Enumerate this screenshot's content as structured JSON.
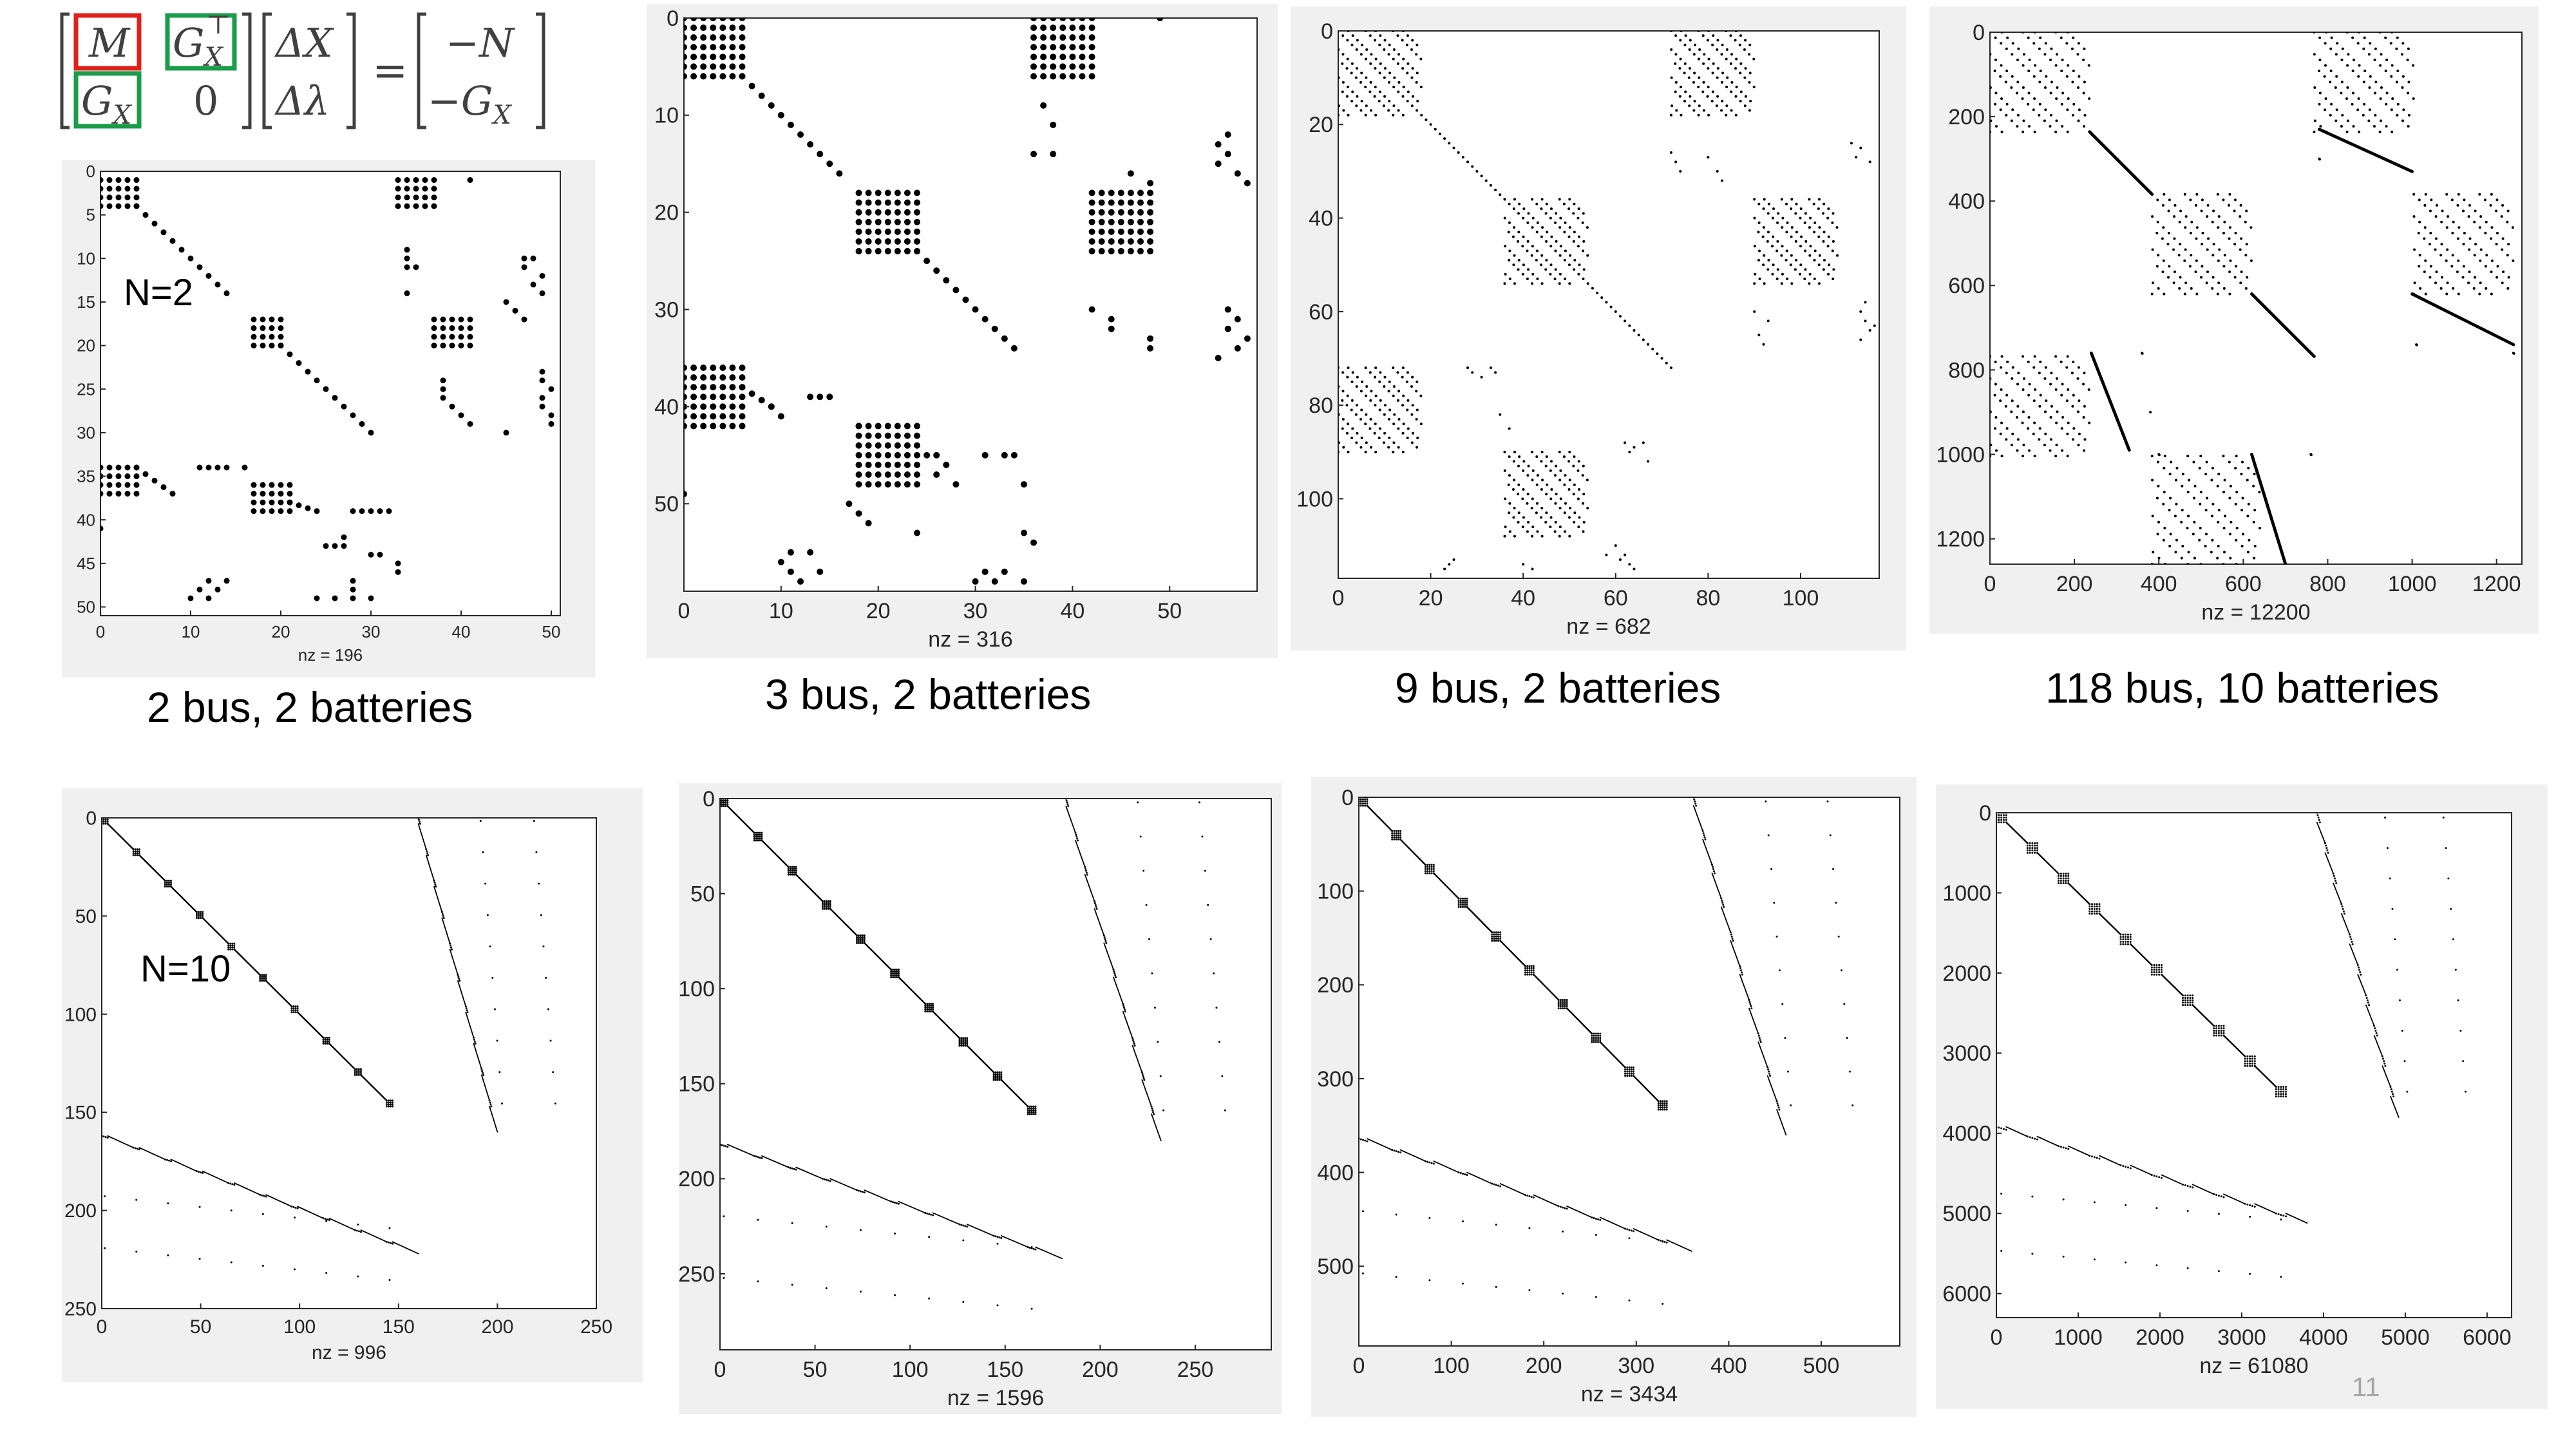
{
  "equation": {
    "m11": "M",
    "m12_base": "G",
    "m12_sub": "X",
    "m12_sup": "⊤",
    "m21_base": "G",
    "m21_sub": "X",
    "m22": "0",
    "x1": "ΔX",
    "x2": "Δλ",
    "eq": "=",
    "r1": "−N",
    "r2_base": "−G",
    "r2_sub": "X",
    "m_box_color": "#e0201b",
    "g_box_color": "#1a9c4a"
  },
  "page_number": "11",
  "chart_data": [
    {
      "type": "heatmap",
      "title": "",
      "xlabel": "nz = 196",
      "ylabel": "",
      "caption": "2 bus, 2 batteries",
      "annotation": "N=2",
      "xlim": [
        0,
        51
      ],
      "ylim": [
        0,
        51
      ],
      "xticks": [
        "0",
        "10",
        "20",
        "30",
        "40",
        "50"
      ],
      "yticks": [
        "0",
        "5",
        "10",
        "15",
        "20",
        "25",
        "30",
        "35",
        "40",
        "45",
        "50"
      ],
      "xtick_values": [
        0,
        10,
        20,
        30,
        40,
        50
      ],
      "ytick_values": [
        0,
        5,
        10,
        15,
        20,
        25,
        30,
        35,
        40,
        45,
        50
      ],
      "nz": 196,
      "blocks": [
        {
          "r0": 1,
          "r1": 4,
          "c0": 0,
          "c1": 4
        },
        {
          "r0": 1,
          "r1": 4,
          "c0": 33,
          "c1": 37
        },
        {
          "r0": 17,
          "r1": 20,
          "c0": 17,
          "c1": 20
        },
        {
          "r0": 17,
          "r1": 20,
          "c0": 37,
          "c1": 41
        },
        {
          "r0": 34,
          "r1": 37,
          "c0": 0,
          "c1": 4
        },
        {
          "r0": 36,
          "r1": 39,
          "c0": 17,
          "c1": 21
        }
      ],
      "diagonals": [
        {
          "r0": 4,
          "c0": 4,
          "r1": 14,
          "c1": 14
        },
        {
          "r0": 20,
          "c0": 20,
          "r1": 30,
          "c1": 30
        },
        {
          "r0": 34,
          "c0": 4,
          "r1": 37,
          "c1": 8
        },
        {
          "r0": 38,
          "c0": 21,
          "r1": 39,
          "c1": 24
        }
      ],
      "scatter": [
        [
          1,
          41
        ],
        [
          9,
          34
        ],
        [
          10,
          34
        ],
        [
          11,
          34
        ],
        [
          11,
          35
        ],
        [
          14,
          34
        ],
        [
          10,
          48
        ],
        [
          10,
          47
        ],
        [
          11,
          47
        ],
        [
          12,
          49
        ],
        [
          13,
          48
        ],
        [
          14,
          49
        ],
        [
          15,
          45
        ],
        [
          16,
          46
        ],
        [
          17,
          47
        ],
        [
          24,
          38
        ],
        [
          25,
          38
        ],
        [
          26,
          38
        ],
        [
          27,
          39
        ],
        [
          28,
          40
        ],
        [
          29,
          41
        ],
        [
          23,
          49
        ],
        [
          24,
          49
        ],
        [
          25,
          50
        ],
        [
          26,
          49
        ],
        [
          27,
          49
        ],
        [
          28,
          50
        ],
        [
          29,
          50
        ],
        [
          30,
          45
        ],
        [
          34,
          11
        ],
        [
          34,
          12
        ],
        [
          34,
          13
        ],
        [
          34,
          14
        ],
        [
          34,
          16
        ],
        [
          39,
          28
        ],
        [
          39,
          29
        ],
        [
          39,
          30
        ],
        [
          39,
          31
        ],
        [
          39,
          32
        ],
        [
          41,
          0
        ],
        [
          43,
          25
        ],
        [
          43,
          26
        ],
        [
          43,
          27
        ],
        [
          42,
          27
        ],
        [
          44,
          30
        ],
        [
          44,
          31
        ],
        [
          45,
          33
        ],
        [
          46,
          33
        ],
        [
          47,
          28
        ],
        [
          48,
          28
        ],
        [
          47,
          12
        ],
        [
          48,
          11
        ],
        [
          49,
          12
        ],
        [
          48,
          13
        ],
        [
          47,
          14
        ],
        [
          49,
          10
        ],
        [
          49,
          24
        ],
        [
          49,
          26
        ],
        [
          49,
          28
        ],
        [
          49,
          30
        ]
      ]
    },
    {
      "type": "heatmap",
      "title": "",
      "xlabel": "nz = 316",
      "ylabel": "",
      "caption": "3 bus, 2 batteries",
      "xlim": [
        0,
        59
      ],
      "ylim": [
        0,
        59
      ],
      "xticks": [
        "0",
        "10",
        "20",
        "30",
        "40",
        "50"
      ],
      "yticks": [
        "0",
        "10",
        "20",
        "30",
        "40",
        "50"
      ],
      "xtick_values": [
        0,
        10,
        20,
        30,
        40,
        50
      ],
      "ytick_values": [
        0,
        10,
        20,
        30,
        40,
        50
      ],
      "nz": 316,
      "blocks": [
        {
          "r0": 0,
          "r1": 6,
          "c0": 0,
          "c1": 6
        },
        {
          "r0": 0,
          "r1": 6,
          "c0": 36,
          "c1": 42
        },
        {
          "r0": 18,
          "r1": 24,
          "c0": 18,
          "c1": 24
        },
        {
          "r0": 18,
          "r1": 24,
          "c0": 42,
          "c1": 48
        },
        {
          "r0": 36,
          "r1": 42,
          "c0": 0,
          "c1": 6
        },
        {
          "r0": 42,
          "r1": 48,
          "c0": 18,
          "c1": 24
        }
      ],
      "diagonals": [
        {
          "r0": 6,
          "c0": 6,
          "r1": 16,
          "c1": 16
        },
        {
          "r0": 24,
          "c0": 24,
          "r1": 34,
          "c1": 34
        },
        {
          "r0": 38,
          "c0": 6,
          "r1": 40,
          "c1": 9
        }
      ],
      "scatter": [
        [
          0,
          49
        ],
        [
          9,
          37
        ],
        [
          11,
          38
        ],
        [
          12,
          56
        ],
        [
          13,
          55
        ],
        [
          14,
          56
        ],
        [
          15,
          55
        ],
        [
          16,
          57
        ],
        [
          17,
          58
        ],
        [
          14,
          38
        ],
        [
          14,
          36
        ],
        [
          16,
          46
        ],
        [
          17,
          48
        ],
        [
          30,
          42
        ],
        [
          31,
          44
        ],
        [
          32,
          44
        ],
        [
          33,
          48
        ],
        [
          34,
          48
        ],
        [
          30,
          56
        ],
        [
          31,
          57
        ],
        [
          32,
          56
        ],
        [
          33,
          58
        ],
        [
          34,
          57
        ],
        [
          35,
          55
        ],
        [
          39,
          13
        ],
        [
          39,
          14
        ],
        [
          39,
          15
        ],
        [
          40,
          9
        ],
        [
          41,
          10
        ],
        [
          42,
          18
        ],
        [
          43,
          19
        ],
        [
          45,
          25
        ],
        [
          45,
          26
        ],
        [
          46,
          27
        ],
        [
          47,
          26
        ],
        [
          48,
          28
        ],
        [
          45,
          31
        ],
        [
          45,
          33
        ],
        [
          45,
          34
        ],
        [
          48,
          35
        ],
        [
          49,
          0
        ],
        [
          50,
          17
        ],
        [
          51,
          18
        ],
        [
          52,
          19
        ],
        [
          53,
          24
        ],
        [
          53,
          35
        ],
        [
          54,
          36
        ],
        [
          55,
          11
        ],
        [
          56,
          10
        ],
        [
          57,
          11
        ],
        [
          58,
          12
        ],
        [
          55,
          13
        ],
        [
          57,
          14
        ],
        [
          58,
          30
        ],
        [
          57,
          31
        ],
        [
          58,
          32
        ],
        [
          57,
          33
        ],
        [
          58,
          35
        ]
      ]
    },
    {
      "type": "heatmap",
      "title": "",
      "xlabel": "nz = 682",
      "ylabel": "",
      "caption": "9 bus, 2 batteries",
      "xlim": [
        0,
        117
      ],
      "ylim": [
        0,
        117
      ],
      "xticks": [
        "0",
        "20",
        "40",
        "60",
        "80",
        "100"
      ],
      "yticks": [
        "0",
        "20",
        "40",
        "60",
        "80",
        "100"
      ],
      "xtick_values": [
        0,
        20,
        40,
        60,
        80,
        100
      ],
      "ytick_values": [
        0,
        20,
        40,
        60,
        80,
        100
      ],
      "nz": 682,
      "sparse_blocks": [
        {
          "r0": 0,
          "r1": 18,
          "c0": 0,
          "c1": 18
        },
        {
          "r0": 0,
          "r1": 18,
          "c0": 72,
          "c1": 90
        },
        {
          "r0": 36,
          "r1": 54,
          "c0": 36,
          "c1": 54
        },
        {
          "r0": 36,
          "r1": 54,
          "c0": 90,
          "c1": 108
        },
        {
          "r0": 72,
          "r1": 90,
          "c0": 0,
          "c1": 18
        },
        {
          "r0": 90,
          "r1": 108,
          "c0": 36,
          "c1": 54
        }
      ],
      "diagonals": [
        {
          "r0": 18,
          "c0": 18,
          "r1": 36,
          "c1": 36
        },
        {
          "r0": 54,
          "c0": 54,
          "r1": 72,
          "c1": 72
        }
      ],
      "scatter": [
        [
          26,
          72
        ],
        [
          28,
          73
        ],
        [
          30,
          74
        ],
        [
          27,
          80
        ],
        [
          30,
          82
        ],
        [
          32,
          83
        ],
        [
          25,
          113
        ],
        [
          27,
          112
        ],
        [
          28,
          115
        ],
        [
          24,
          111
        ],
        [
          60,
          90
        ],
        [
          62,
          93
        ],
        [
          65,
          91
        ],
        [
          67,
          92
        ],
        [
          58,
          114
        ],
        [
          60,
          113
        ],
        [
          62,
          114
        ],
        [
          64,
          115
        ],
        [
          63,
          116
        ],
        [
          66,
          113
        ],
        [
          72,
          28
        ],
        [
          73,
          29
        ],
        [
          74,
          31
        ],
        [
          72,
          33
        ],
        [
          73,
          34
        ],
        [
          82,
          35
        ],
        [
          85,
          37
        ],
        [
          88,
          62
        ],
        [
          89,
          64
        ],
        [
          90,
          63
        ],
        [
          88,
          66
        ],
        [
          92,
          67
        ],
        [
          110,
          60
        ],
        [
          112,
          58
        ],
        [
          113,
          61
        ],
        [
          112,
          62
        ],
        [
          114,
          63
        ],
        [
          115,
          64
        ],
        [
          114,
          40
        ],
        [
          115,
          42
        ],
        [
          113,
          25
        ],
        [
          114,
          24
        ],
        [
          115,
          23
        ]
      ]
    },
    {
      "type": "heatmap",
      "title": "",
      "xlabel": "nz = 12200",
      "ylabel": "",
      "caption": "118 bus, 10 batteries",
      "xlim": [
        0,
        1260
      ],
      "ylim": [
        0,
        1260
      ],
      "xticks": [
        "0",
        "200",
        "400",
        "600",
        "800",
        "1000",
        "1200"
      ],
      "yticks": [
        "0",
        "200",
        "400",
        "600",
        "800",
        "1000",
        "1200"
      ],
      "xtick_values": [
        0,
        200,
        400,
        600,
        800,
        1000,
        1200
      ],
      "ytick_values": [
        0,
        200,
        400,
        600,
        800,
        1000,
        1200
      ],
      "nz": 12200,
      "sparse_blocks": [
        {
          "r0": 0,
          "r1": 236,
          "c0": 0,
          "c1": 236
        },
        {
          "r0": 0,
          "r1": 236,
          "c0": 768,
          "c1": 1004
        },
        {
          "r0": 384,
          "r1": 620,
          "c0": 384,
          "c1": 620
        },
        {
          "r0": 384,
          "r1": 620,
          "c0": 1004,
          "c1": 1260
        },
        {
          "r0": 768,
          "r1": 1004,
          "c0": 0,
          "c1": 236
        },
        {
          "r0": 1004,
          "r1": 1260,
          "c0": 384,
          "c1": 620
        }
      ],
      "diagonals": [
        {
          "r0": 236,
          "c0": 236,
          "r1": 384,
          "c1": 384
        },
        {
          "r0": 620,
          "c0": 620,
          "r1": 768,
          "c1": 768
        },
        {
          "r0": 230,
          "c0": 780,
          "r1": 330,
          "c1": 1000
        },
        {
          "r0": 620,
          "c0": 1000,
          "r1": 740,
          "c1": 1240
        },
        {
          "r0": 760,
          "c0": 240,
          "r1": 990,
          "c1": 330
        },
        {
          "r0": 1000,
          "c0": 620,
          "r1": 1260,
          "c1": 700
        }
      ],
      "scatter": [
        [
          300,
          780
        ],
        [
          301,
          781
        ],
        [
          760,
          360
        ],
        [
          761,
          361
        ],
        [
          900,
          380
        ],
        [
          1000,
          400
        ],
        [
          1001,
          401
        ],
        [
          1000,
          760
        ],
        [
          1001,
          761
        ],
        [
          740,
          1010
        ],
        [
          741,
          1011
        ],
        [
          760,
          1240
        ],
        [
          761,
          1241
        ]
      ]
    },
    {
      "type": "heatmap",
      "title": "",
      "xlabel": "nz = 996",
      "ylabel": "",
      "caption": "",
      "annotation": "N=10",
      "xlim": [
        0,
        250
      ],
      "ylim": [
        0,
        250
      ],
      "xticks": [
        "0",
        "50",
        "100",
        "150",
        "200",
        "250"
      ],
      "yticks": [
        "0",
        "50",
        "100",
        "150",
        "200",
        "250"
      ],
      "xtick_values": [
        0,
        50,
        100,
        150,
        200,
        250
      ],
      "ytick_values": [
        0,
        50,
        100,
        150,
        200,
        250
      ],
      "nz": 996,
      "chain": {
        "n": 10,
        "row0": 0,
        "col0": 0,
        "step": 16,
        "size": 3,
        "cross_col0": 160,
        "cross_col_step": 4,
        "lower_row0": 162,
        "lower_row_step": 6,
        "lower_col_step": 16
      }
    },
    {
      "type": "heatmap",
      "title": "",
      "xlabel": "nz = 1596",
      "ylabel": "",
      "caption": "",
      "xlim": [
        0,
        290
      ],
      "ylim": [
        0,
        290
      ],
      "xticks": [
        "0",
        "50",
        "100",
        "150",
        "200",
        "250"
      ],
      "yticks": [
        "0",
        "50",
        "100",
        "150",
        "200",
        "250"
      ],
      "xtick_values": [
        0,
        50,
        100,
        150,
        200,
        250
      ],
      "ytick_values": [
        0,
        50,
        100,
        150,
        200,
        250
      ],
      "nz": 1596,
      "chain": {
        "n": 10,
        "row0": 0,
        "col0": 0,
        "step": 18,
        "size": 4,
        "cross_col0": 182,
        "cross_col_step": 5,
        "lower_row0": 182,
        "lower_row_step": 6,
        "lower_col_step": 18
      }
    },
    {
      "type": "heatmap",
      "title": "",
      "xlabel": "nz = 3434",
      "ylabel": "",
      "caption": "",
      "xlim": [
        0,
        585
      ],
      "ylim": [
        0,
        585
      ],
      "xticks": [
        "0",
        "100",
        "200",
        "300",
        "400",
        "500"
      ],
      "yticks": [
        "0",
        "100",
        "200",
        "300",
        "400",
        "500"
      ],
      "xtick_values": [
        0,
        100,
        200,
        300,
        400,
        500
      ],
      "ytick_values": [
        0,
        100,
        200,
        300,
        400,
        500
      ],
      "nz": 3434,
      "chain": {
        "n": 10,
        "row0": 0,
        "col0": 0,
        "step": 36,
        "size": 9,
        "cross_col0": 362,
        "cross_col_step": 10,
        "lower_row0": 364,
        "lower_row_step": 12,
        "lower_col_step": 36
      }
    },
    {
      "type": "heatmap",
      "title": "",
      "xlabel": "nz = 61080",
      "ylabel": "",
      "caption": "",
      "xlim": [
        0,
        6300
      ],
      "ylim": [
        0,
        6300
      ],
      "xticks": [
        "0",
        "1000",
        "2000",
        "3000",
        "4000",
        "5000",
        "6000"
      ],
      "yticks": [
        "0",
        "1000",
        "2000",
        "3000",
        "4000",
        "5000",
        "6000"
      ],
      "xtick_values": [
        0,
        1000,
        2000,
        3000,
        4000,
        5000,
        6000
      ],
      "ytick_values": [
        0,
        1000,
        2000,
        3000,
        4000,
        5000,
        6000
      ],
      "nz": 61080,
      "chain": {
        "n": 10,
        "row0": 0,
        "col0": 0,
        "step": 380,
        "size": 120,
        "cross_col0": 3920,
        "cross_col_step": 100,
        "lower_row0": 3920,
        "lower_row_step": 120,
        "lower_col_step": 380
      }
    }
  ]
}
